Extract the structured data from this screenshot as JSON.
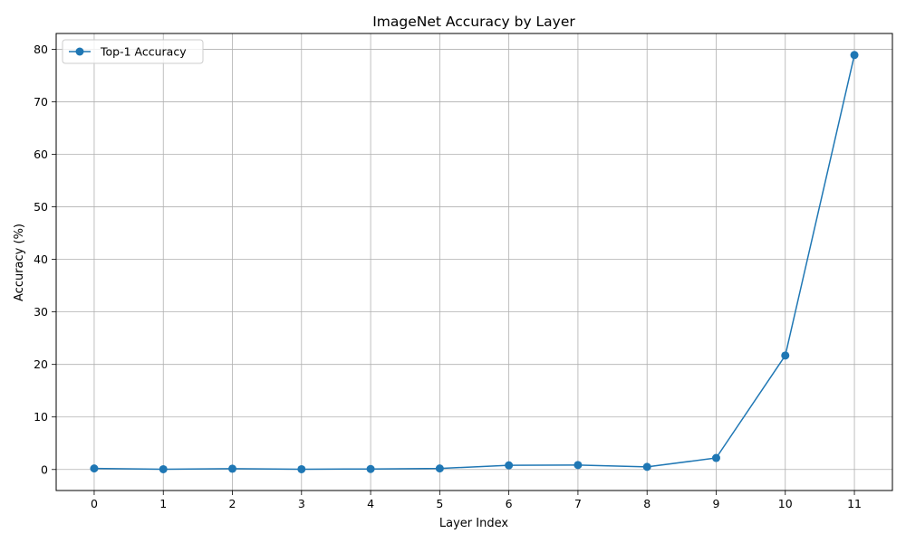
{
  "chart_data": {
    "type": "line",
    "title": "ImageNet Accuracy by Layer",
    "xlabel": "Layer Index",
    "ylabel": "Accuracy (%)",
    "x": [
      0,
      1,
      2,
      3,
      4,
      5,
      6,
      7,
      8,
      9,
      10,
      11
    ],
    "xticks": [
      "0",
      "1",
      "2",
      "3",
      "4",
      "5",
      "6",
      "7",
      "8",
      "9",
      "10",
      "11"
    ],
    "yticks": [
      "0",
      "10",
      "20",
      "30",
      "40",
      "50",
      "60",
      "70",
      "80"
    ],
    "ylim": [
      -4,
      83
    ],
    "xlim": [
      -0.55,
      11.55
    ],
    "grid": true,
    "legend_position": "top-left",
    "series": [
      {
        "name": "Top-1 Accuracy",
        "color": "#1f77b4",
        "marker": "circle",
        "values": [
          0.2,
          0.05,
          0.15,
          0.05,
          0.1,
          0.2,
          0.8,
          0.85,
          0.5,
          2.2,
          21.7,
          78.9
        ]
      }
    ]
  }
}
